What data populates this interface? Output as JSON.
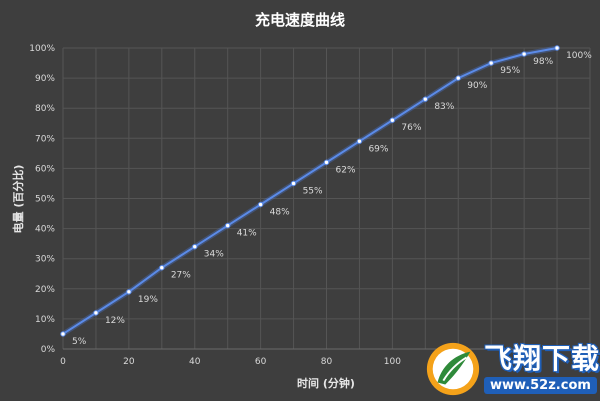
{
  "chart_data": {
    "type": "line",
    "title": "充电速度曲线",
    "xlabel": "时间 (分钟)",
    "ylabel": "电量 (百分比)",
    "xlim": [
      0,
      160
    ],
    "ylim": [
      0,
      100
    ],
    "x_ticks": [
      "0",
      "20",
      "40",
      "60",
      "80",
      "100"
    ],
    "y_ticks": [
      "0%",
      "10%",
      "20%",
      "30%",
      "40%",
      "50%",
      "60%",
      "70%",
      "80%",
      "90%",
      "100%"
    ],
    "grid": true,
    "series": [
      {
        "x": [
          0,
          10,
          20,
          30,
          40,
          50,
          60,
          70,
          80,
          90,
          100,
          110,
          120,
          130,
          140,
          150
        ],
        "values": [
          5,
          12,
          19,
          27,
          34,
          41,
          48,
          55,
          62,
          69,
          76,
          83,
          90,
          95,
          98,
          100
        ],
        "labels": [
          "5%",
          "12%",
          "19%",
          "27%",
          "34%",
          "41%",
          "48%",
          "55%",
          "62%",
          "69%",
          "76%",
          "83%",
          "90%",
          "95%",
          "98%",
          "100%"
        ]
      }
    ]
  },
  "watermark": {
    "main": "飞翔下载",
    "url": "www.52z.com"
  }
}
